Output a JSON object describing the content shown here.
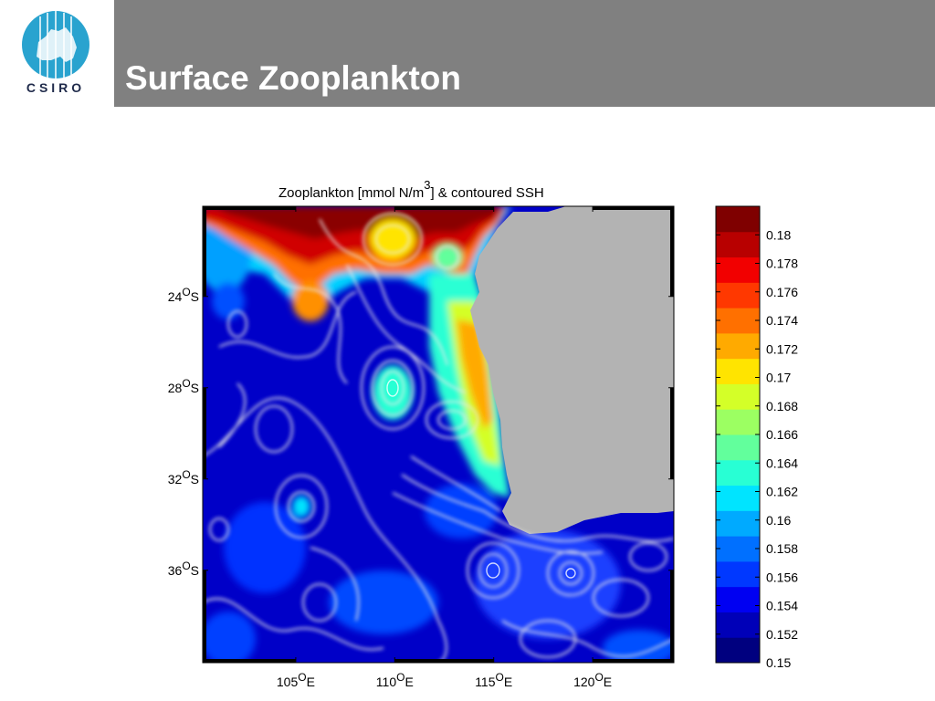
{
  "slide": {
    "title": "Surface Zooplankton",
    "logo_text": "CSIRO",
    "header_color": "#808080"
  },
  "chart_data": {
    "type": "heatmap",
    "title": "Zooplankton [mmol N/m3] & contoured SSH",
    "title_parts": [
      "Zooplankton [mmol N/m",
      "3",
      "] & contoured SSH"
    ],
    "x_ticks": [
      {
        "value": 105,
        "label": "105",
        "sup": "O",
        "suffix": "E"
      },
      {
        "value": 110,
        "label": "110",
        "sup": "O",
        "suffix": "E"
      },
      {
        "value": 115,
        "label": "115",
        "sup": "O",
        "suffix": "E"
      },
      {
        "value": 120,
        "label": "120",
        "sup": "O",
        "suffix": "E"
      }
    ],
    "y_ticks": [
      {
        "value": -24,
        "label": "24",
        "sup": "O",
        "suffix": "S"
      },
      {
        "value": -28,
        "label": "28",
        "sup": "O",
        "suffix": "S"
      },
      {
        "value": -32,
        "label": "32",
        "sup": "O",
        "suffix": "S"
      },
      {
        "value": -36,
        "label": "36",
        "sup": "O",
        "suffix": "S"
      }
    ],
    "xlim": [
      100.3,
      124.1
    ],
    "ylim": [
      -40.05,
      -20.05
    ],
    "colorbar": {
      "min": 0.15,
      "max": 0.182,
      "tick_labels": [
        "0.18",
        "0.178",
        "0.176",
        "0.174",
        "0.172",
        "0.17",
        "0.168",
        "0.166",
        "0.164",
        "0.162",
        "0.16",
        "0.158",
        "0.156",
        "0.154",
        "0.152",
        "0.15"
      ],
      "tick_values": [
        0.18,
        0.178,
        0.176,
        0.174,
        0.172,
        0.17,
        0.168,
        0.166,
        0.164,
        0.162,
        0.16,
        0.158,
        0.156,
        0.154,
        0.152,
        0.15
      ],
      "colors": [
        "#00007f",
        "#0000b8",
        "#0000f2",
        "#0038ff",
        "#0070ff",
        "#00aaff",
        "#00e4ff",
        "#28ffd4",
        "#62ff9c",
        "#9cff62",
        "#d4ff28",
        "#ffe400",
        "#ffaa00",
        "#ff7000",
        "#ff3800",
        "#f20000",
        "#b80000",
        "#7f0000"
      ]
    },
    "land_color": "#b3b3b3",
    "contour_color": "#e8e8e8"
  }
}
